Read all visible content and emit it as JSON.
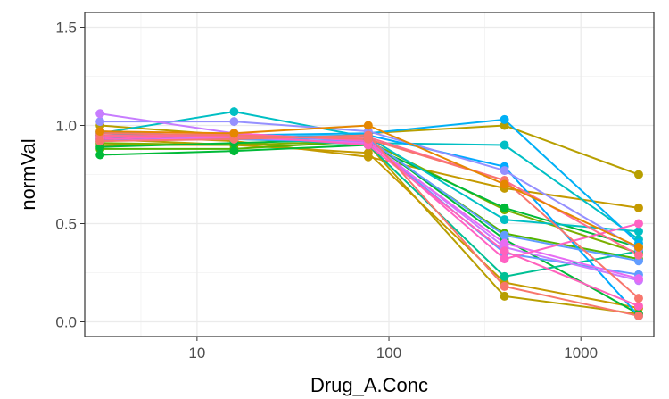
{
  "chart_data": {
    "type": "line",
    "xlabel": "Drug_A.Conc",
    "ylabel": "normVal",
    "x_scale": "log10",
    "xlim": [
      2.6,
      2400
    ],
    "ylim": [
      -0.075,
      1.575
    ],
    "x_ticks": [
      10,
      100,
      1000
    ],
    "x_tick_labels": [
      "10",
      "100",
      "1000"
    ],
    "y_ticks": [
      0.0,
      0.5,
      1.0,
      1.5
    ],
    "y_tick_labels": [
      "0.0",
      "0.5",
      "1.0",
      "1.5"
    ],
    "grid": true,
    "legend": "none",
    "x": [
      3.125,
      15.6,
      78,
      400,
      2000
    ],
    "series": [
      {
        "color": "#B79F00",
        "values": [
          1.0,
          0.95,
          0.9,
          0.13,
          0.04
        ]
      },
      {
        "color": "#B79F00",
        "values": [
          0.93,
          0.9,
          0.96,
          1.0,
          0.75
        ]
      },
      {
        "color": "#C49A00",
        "values": [
          0.95,
          0.92,
          0.84,
          0.68,
          0.58
        ]
      },
      {
        "color": "#C49A00",
        "values": [
          0.9,
          0.9,
          0.86,
          0.2,
          0.07
        ]
      },
      {
        "color": "#7CAE00",
        "values": [
          0.91,
          0.9,
          0.92,
          0.57,
          0.35
        ]
      },
      {
        "color": "#53B400",
        "values": [
          0.88,
          0.88,
          0.92,
          0.45,
          0.32
        ]
      },
      {
        "color": "#00BA38",
        "values": [
          0.85,
          0.87,
          0.9,
          0.58,
          0.38
        ]
      },
      {
        "color": "#00B938",
        "values": [
          0.89,
          0.91,
          0.93,
          0.42,
          0.04
        ]
      },
      {
        "color": "#00C094",
        "values": [
          0.92,
          0.94,
          0.9,
          0.23,
          0.36
        ]
      },
      {
        "color": "#00BFC4",
        "values": [
          0.94,
          0.93,
          0.91,
          0.9,
          0.42
        ]
      },
      {
        "color": "#00BFC4",
        "values": [
          0.96,
          1.07,
          0.94,
          0.52,
          0.46
        ]
      },
      {
        "color": "#00B0F6",
        "values": [
          0.95,
          0.95,
          0.96,
          1.03,
          0.4
        ]
      },
      {
        "color": "#00A9FF",
        "values": [
          0.93,
          0.94,
          0.95,
          0.79,
          0.03
        ]
      },
      {
        "color": "#619CFF",
        "values": [
          0.97,
          0.94,
          0.93,
          0.44,
          0.31
        ]
      },
      {
        "color": "#619CFF",
        "values": [
          0.95,
          0.93,
          0.92,
          0.35,
          0.24
        ]
      },
      {
        "color": "#9590FF",
        "values": [
          1.02,
          1.02,
          0.97,
          0.77,
          0.37
        ]
      },
      {
        "color": "#C77CFF",
        "values": [
          1.06,
          0.96,
          0.92,
          0.38,
          0.21
        ]
      },
      {
        "color": "#E76BF3",
        "values": [
          0.92,
          0.94,
          0.91,
          0.4,
          0.22
        ]
      },
      {
        "color": "#FF61C3",
        "values": [
          0.94,
          0.96,
          0.92,
          0.32,
          0.5
        ]
      },
      {
        "color": "#FF62BC",
        "values": [
          0.93,
          0.95,
          0.9,
          0.36,
          0.08
        ]
      },
      {
        "color": "#FF6C90",
        "values": [
          0.95,
          0.94,
          0.94,
          0.72,
          0.34
        ]
      },
      {
        "color": "#F8766D",
        "values": [
          0.96,
          0.95,
          0.93,
          0.72,
          0.12
        ]
      },
      {
        "color": "#F8766D",
        "values": [
          0.92,
          0.93,
          0.95,
          0.18,
          0.03
        ]
      },
      {
        "color": "#E58700",
        "values": [
          0.97,
          0.96,
          1.0,
          0.7,
          0.38
        ]
      }
    ]
  }
}
